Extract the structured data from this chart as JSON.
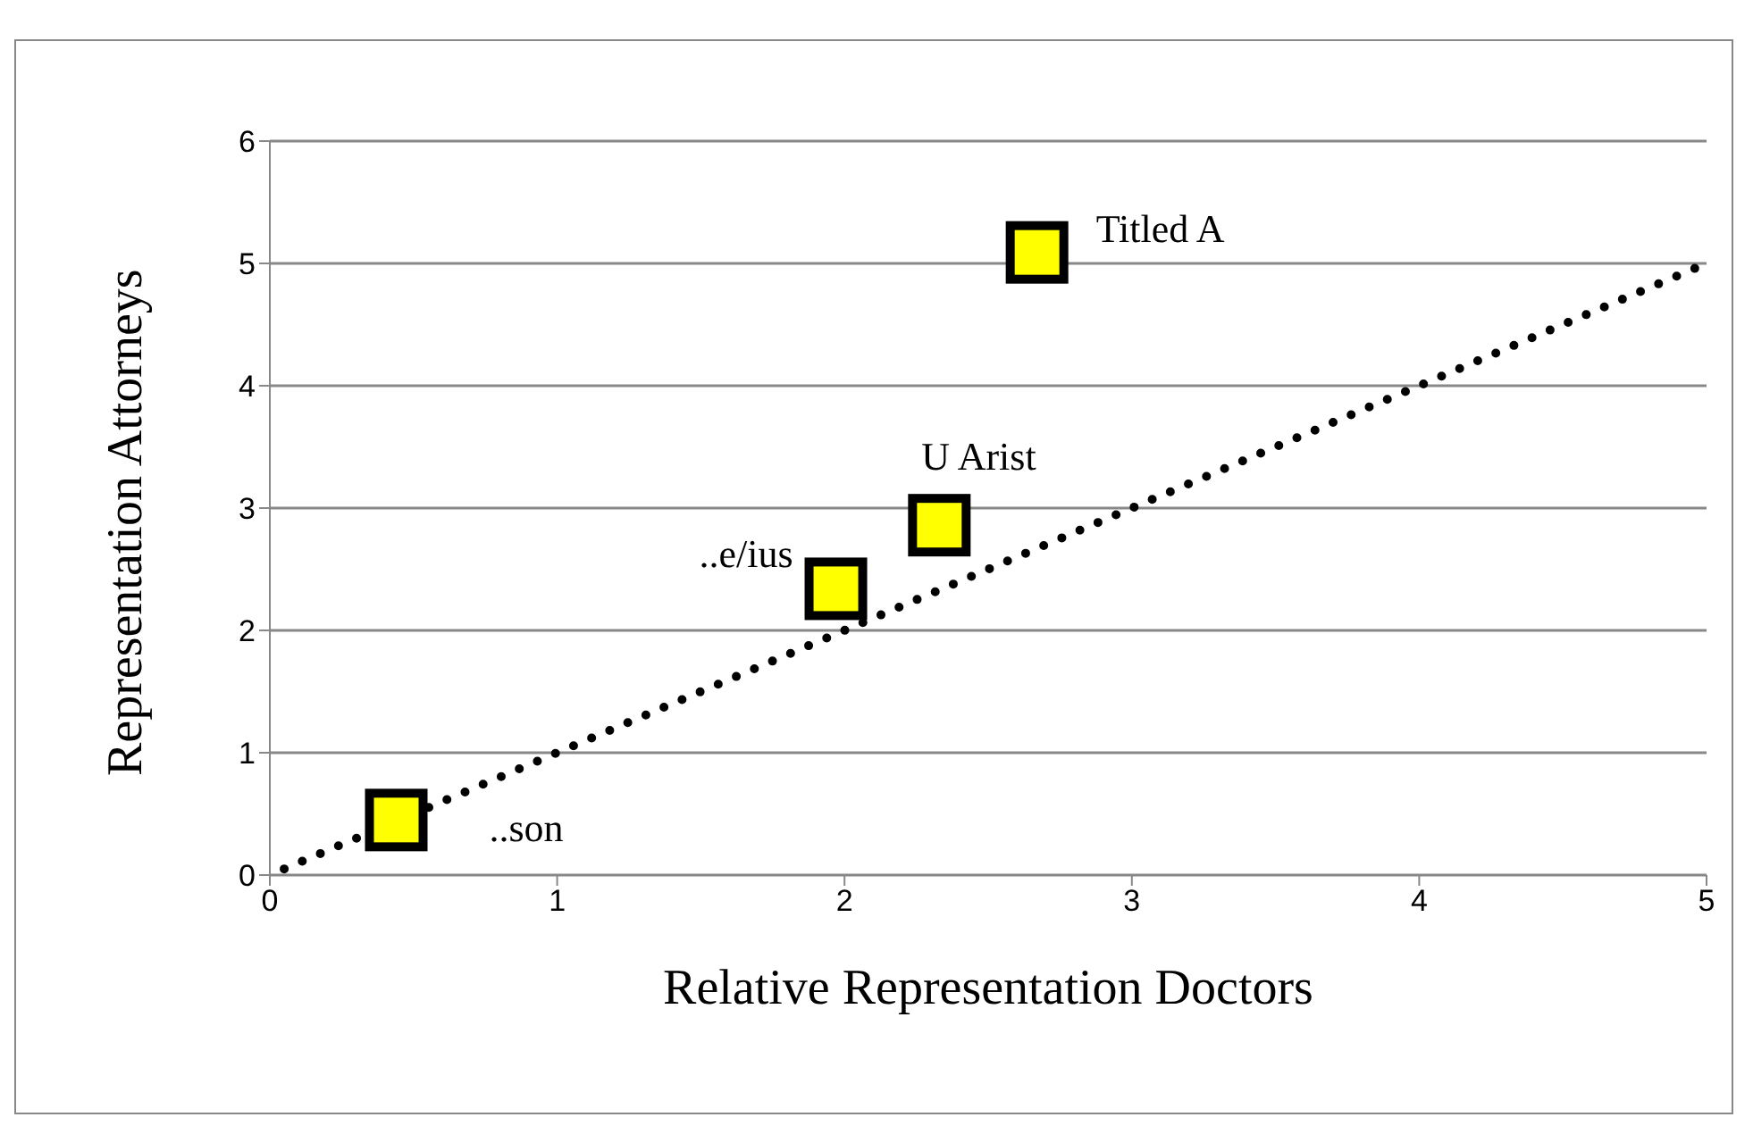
{
  "chart_data": {
    "type": "scatter",
    "xlabel": "Relative Representation Doctors",
    "ylabel": "Representation Attorneys",
    "xlim": [
      0,
      5
    ],
    "xticks": [
      0,
      1,
      2,
      3,
      4,
      5
    ],
    "ylim": [
      0,
      6
    ],
    "yticks": [
      0,
      1,
      2,
      3,
      4,
      5,
      6
    ],
    "grid": "y",
    "legend": false,
    "series": [
      {
        "color": "#ffff00",
        "marker": "square",
        "x": [
          0.44,
          1.97,
          2.33,
          2.67
        ],
        "values": [
          0.45,
          2.34,
          2.86,
          5.09
        ]
      },
      {
        "type": "line",
        "color": "#000000",
        "marker": "none",
        "line_style": "dotted",
        "x": [
          0.05,
          5
        ],
        "values": [
          0.05,
          5
        ]
      }
    ],
    "annotations": [
      {
        "text": "Titled A",
        "x": 2.67,
        "y": 5.09
      },
      {
        "text": "U Arist",
        "x": 2.33,
        "y": 2.86
      },
      {
        "text": "..e/ius",
        "x": 1.97,
        "y": 2.34
      },
      {
        "text": "..son",
        "x": 0.44,
        "y": 0.45
      }
    ]
  }
}
